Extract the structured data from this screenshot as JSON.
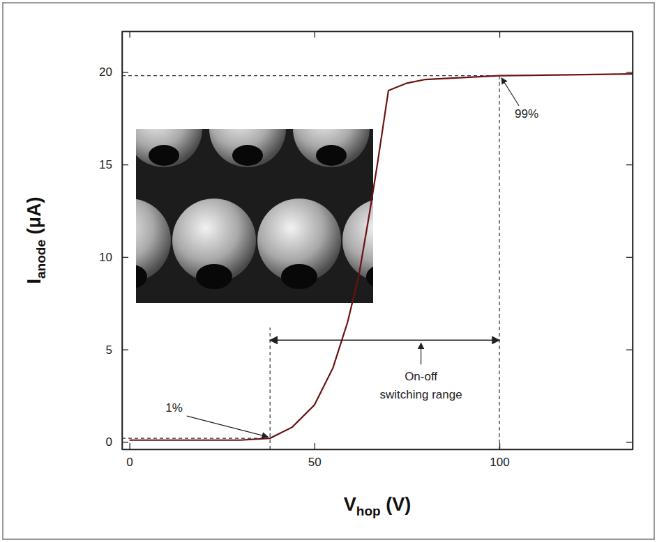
{
  "chart_data": {
    "type": "line",
    "x_label": "Vhop (V)",
    "y_label": "Ianode (μA)",
    "x": [
      0,
      10,
      20,
      30,
      38,
      44,
      50,
      55,
      59,
      62,
      65,
      67,
      70,
      75,
      80,
      90,
      100,
      136
    ],
    "values": [
      0.1,
      0.1,
      0.1,
      0.1,
      0.2,
      0.8,
      2.0,
      4.0,
      6.5,
      9.0,
      12.5,
      15.0,
      19.0,
      19.4,
      19.6,
      19.7,
      19.8,
      19.9
    ],
    "color": "#6b1212",
    "xlim": [
      -2,
      136
    ],
    "xticks": [
      0,
      50,
      100
    ],
    "ylim": [
      -0.4,
      22.2
    ],
    "yticks": [
      0,
      5,
      10,
      15,
      20
    ],
    "grid": false,
    "annotations": [
      {
        "text": "1%",
        "x": 38,
        "y": 0.2
      },
      {
        "text": "99%",
        "x": 100,
        "y": 19.8
      }
    ],
    "range_annotation": {
      "text": "On-off switching range",
      "x0": 38,
      "x1": 100,
      "y": 5.5
    }
  }
}
